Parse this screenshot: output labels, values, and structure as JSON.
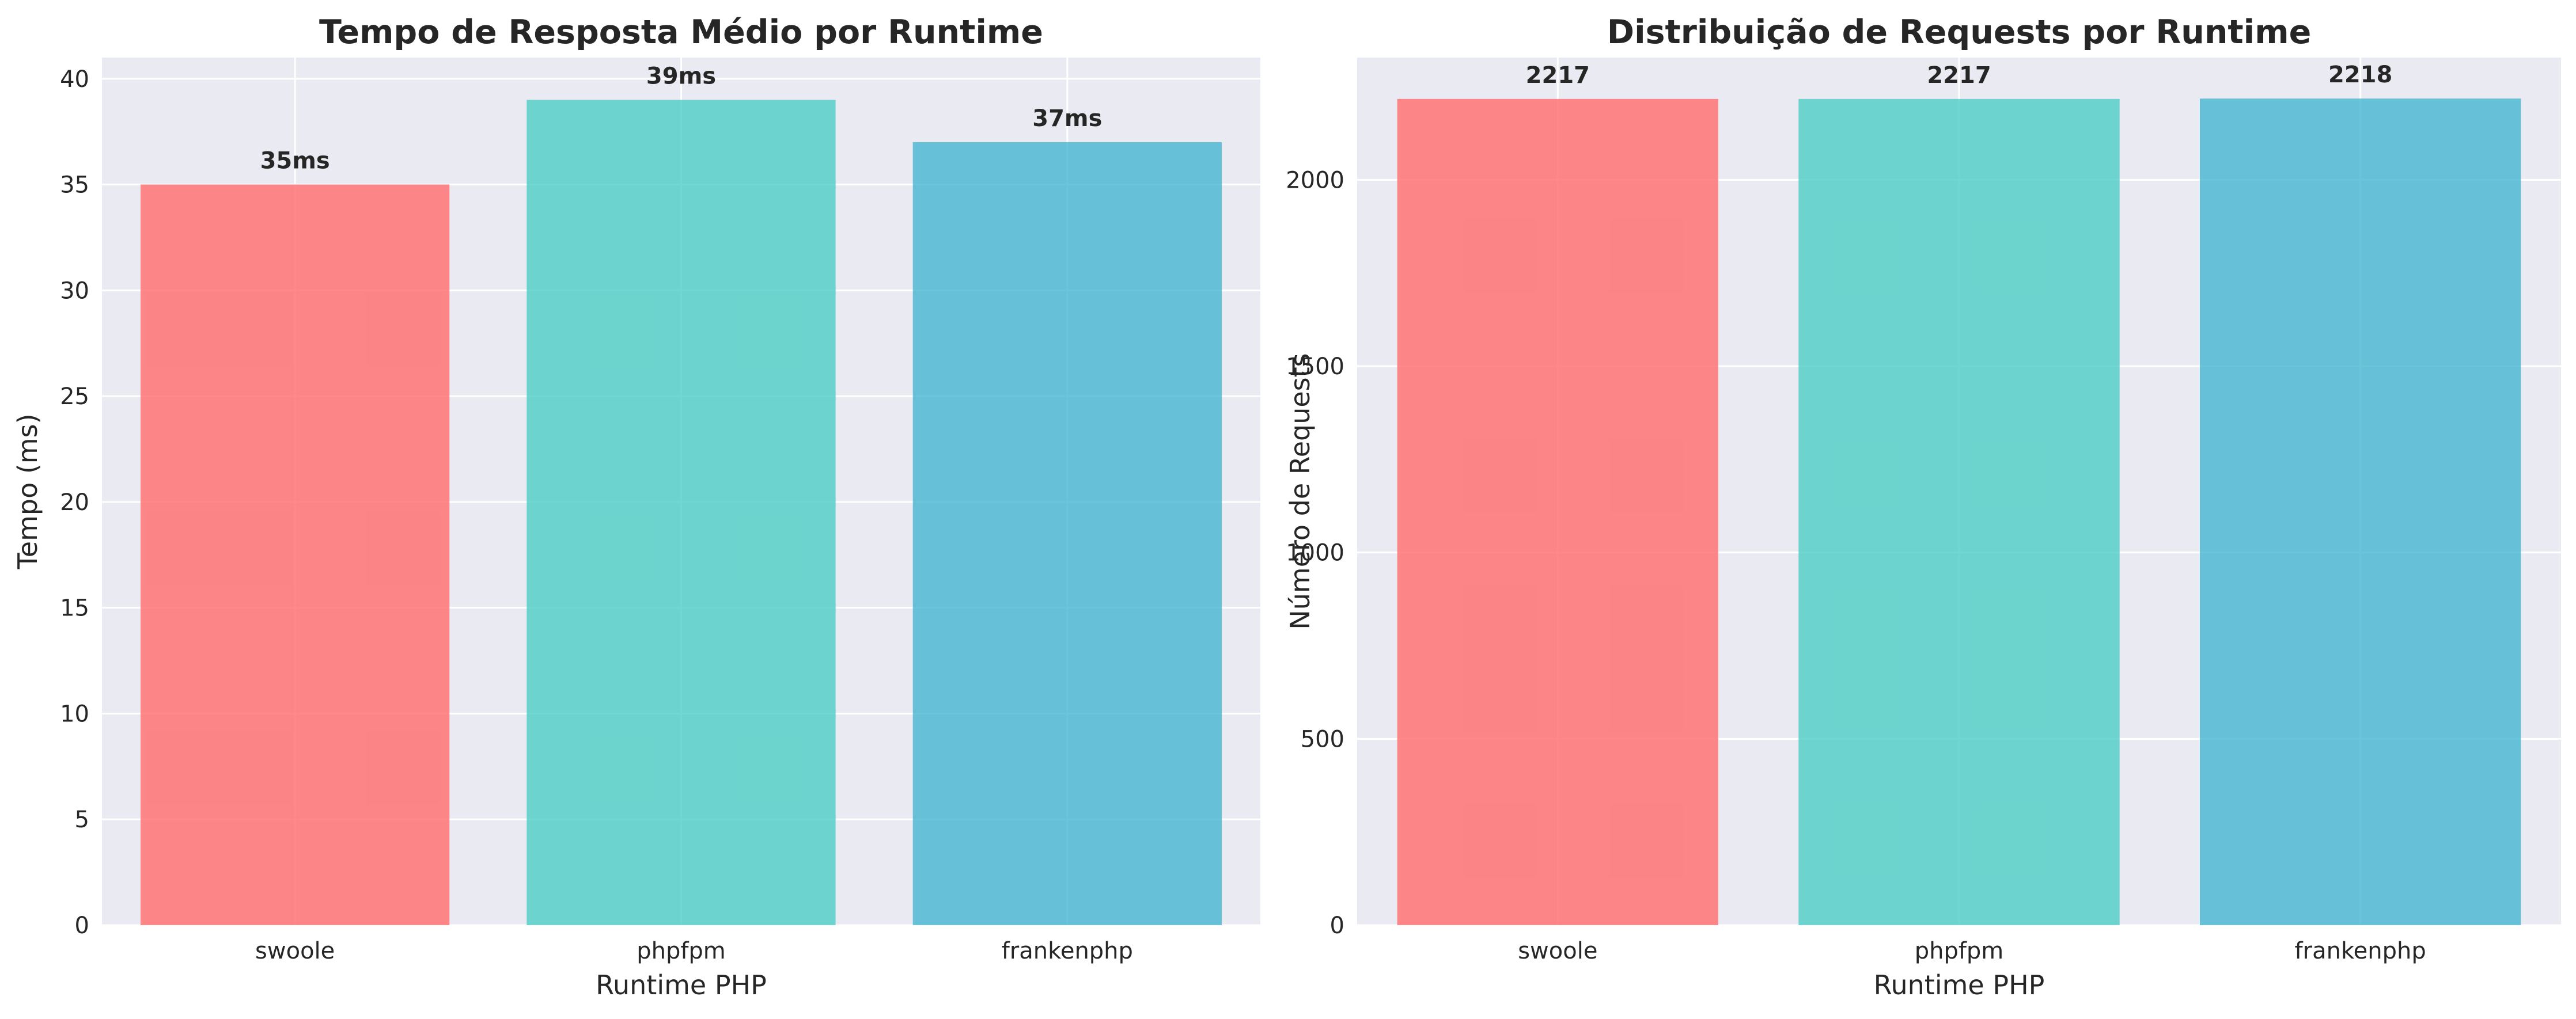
{
  "chart_data": [
    {
      "type": "bar",
      "title": "Tempo de Resposta Médio por Runtime",
      "xlabel": "Runtime PHP",
      "ylabel": "Tempo (ms)",
      "categories": [
        "swoole",
        "phpfpm",
        "frankenphp"
      ],
      "values": [
        35,
        39,
        37
      ],
      "value_labels": [
        "35ms",
        "39ms",
        "37ms"
      ],
      "colors": [
        "#ff6b6b",
        "#4ecdc4",
        "#45b7d1"
      ],
      "ylim": [
        0,
        41
      ],
      "yticks": [
        0,
        5,
        10,
        15,
        20,
        25,
        30,
        35,
        40
      ],
      "ytick_labels": [
        "0",
        "5",
        "10",
        "15",
        "20",
        "25",
        "30",
        "35",
        "40"
      ],
      "grid": true
    },
    {
      "type": "bar",
      "title": "Distribuição de Requests por Runtime",
      "xlabel": "Runtime PHP",
      "ylabel": "Número de Requests",
      "categories": [
        "swoole",
        "phpfpm",
        "frankenphp"
      ],
      "values": [
        2217,
        2217,
        2218
      ],
      "value_labels": [
        "2217",
        "2217",
        "2218"
      ],
      "colors": [
        "#ff6b6b",
        "#4ecdc4",
        "#45b7d1"
      ],
      "ylim": [
        0,
        2328
      ],
      "yticks": [
        0,
        500,
        1000,
        1500,
        2000
      ],
      "ytick_labels": [
        "0",
        "500",
        "1000",
        "1500",
        "2000"
      ],
      "grid": true
    }
  ]
}
